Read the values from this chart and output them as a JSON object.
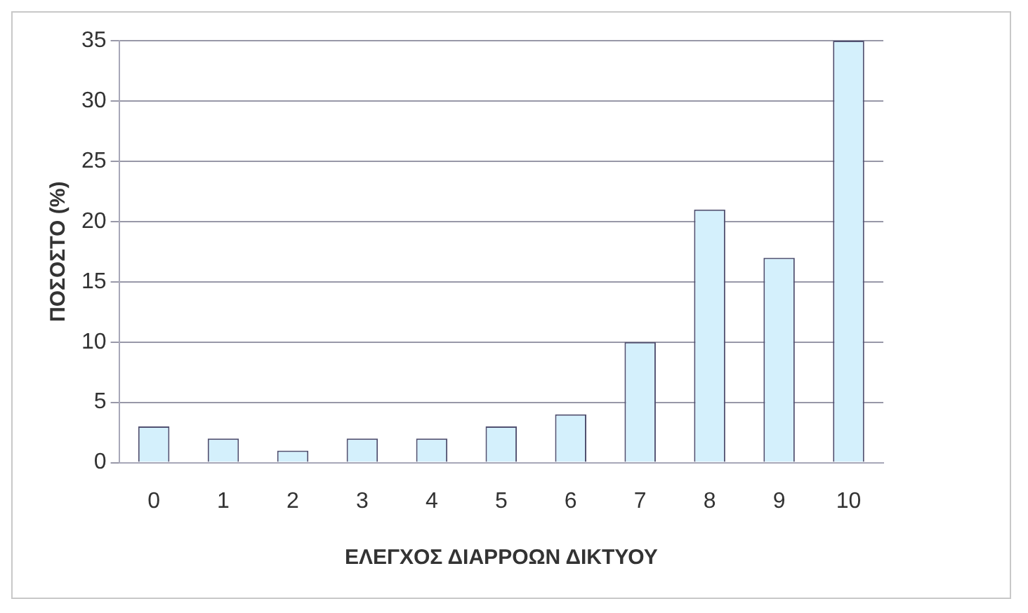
{
  "chart_data": {
    "type": "bar",
    "xlabel": "ΕΛΕΓΧΟΣ ΔΙΑΡΡΟΩΝ ΔΙΚΤΥΟΥ",
    "ylabel": "ΠΟΣΟΣΤΟ (%)",
    "categories": [
      "0",
      "1",
      "2",
      "3",
      "4",
      "5",
      "6",
      "7",
      "8",
      "9",
      "10"
    ],
    "values": [
      3,
      2,
      1,
      2,
      2,
      3,
      4,
      10,
      21,
      17,
      35
    ],
    "color": "#d4f0fc",
    "ylim": [
      0,
      35
    ],
    "yticks": [
      0,
      5,
      10,
      15,
      20,
      25,
      30,
      35
    ],
    "grid": "y"
  }
}
